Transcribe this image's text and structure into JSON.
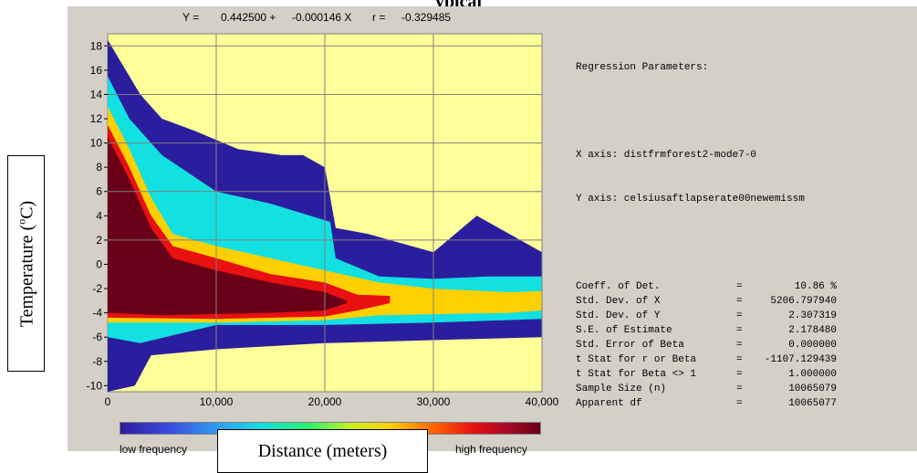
{
  "header": {
    "title_fragment": "ypical"
  },
  "regression_equation": {
    "y_label": "Y =",
    "intercept": "0.442500 +",
    "slope": "-0.000146 X",
    "r_label": "r =",
    "r_value": "-0.329485"
  },
  "regression_panel": {
    "heading": "Regression Parameters:",
    "x_axis": "X axis: distfrmforest2-mode7-0",
    "y_axis": "Y axis: celsiusaftlapserate00newemissm",
    "rows": [
      {
        "label": "Coeff. of Det.",
        "value": "10.86 %"
      },
      {
        "label": "Std. Dev. of X",
        "value": "5206.797940"
      },
      {
        "label": "Std. Dev. of Y",
        "value": "2.307319"
      },
      {
        "label": "S.E. of Estimate",
        "value": "2.178480"
      },
      {
        "label": "Std. Error of Beta",
        "value": "0.000000"
      },
      {
        "label": "t Stat for r or Beta",
        "value": "-1107.129439"
      },
      {
        "label": "t Stat for Beta <> 1",
        "value": "1.000000"
      },
      {
        "label": "Sample Size (n)",
        "value": "10065079"
      },
      {
        "label": "Apparent df",
        "value": "10065077"
      }
    ]
  },
  "colorbar": {
    "low_label": "low frequency",
    "high_label": "high frequency"
  },
  "annotations": {
    "y_axis_label_text": "Temperature (",
    "y_axis_label_sup": "o",
    "y_axis_label_end": "C)",
    "x_axis_label": "Distance (meters)"
  },
  "colors": {
    "plot_background": "#ffff99",
    "panel_background": "#d4d0c8",
    "grid": "#808080",
    "low": "#2b1e9e",
    "high": "#6a0018"
  },
  "chart_data": {
    "type": "heatmap",
    "xlim": [
      0,
      40000
    ],
    "ylim": [
      -10.5,
      19
    ],
    "x_ticks": [
      0,
      10000,
      20000,
      30000,
      40000
    ],
    "x_tick_labels": [
      "0",
      "10,000",
      "20,000",
      "30,000",
      "40,000"
    ],
    "y_ticks": [
      -10,
      -8,
      -6,
      -4,
      -2,
      0,
      2,
      4,
      6,
      8,
      10,
      12,
      14,
      16,
      18
    ],
    "y_tick_labels": [
      "-10",
      "-8",
      "-6",
      "-4",
      "-2",
      "0",
      "2",
      "4",
      "6",
      "8",
      "10",
      "12",
      "14",
      "16",
      "18"
    ],
    "grid": true,
    "regression": {
      "intercept": 0.4425,
      "slope": -0.000146,
      "r": -0.329485
    },
    "density_bands": [
      {
        "level": "very-high",
        "color": "#6a0018",
        "upper": [
          [
            0,
            10.5
          ],
          [
            2000,
            7
          ],
          [
            4000,
            3
          ],
          [
            6000,
            0.5
          ],
          [
            10000,
            -0.5
          ],
          [
            15000,
            -1.5
          ],
          [
            20000,
            -2.3
          ],
          [
            22000,
            -3
          ]
        ],
        "lower": [
          [
            0,
            -4
          ],
          [
            5000,
            -4.2
          ],
          [
            15000,
            -4
          ],
          [
            20000,
            -3.8
          ],
          [
            22000,
            -3.2
          ]
        ]
      },
      {
        "level": "high",
        "color": "#e81010",
        "upper": [
          [
            0,
            11.5
          ],
          [
            2000,
            8
          ],
          [
            4000,
            4
          ],
          [
            6000,
            1.5
          ],
          [
            10000,
            0.5
          ],
          [
            15000,
            -0.8
          ],
          [
            20000,
            -1.5
          ],
          [
            23000,
            -2.5
          ],
          [
            26000,
            -2.6
          ]
        ],
        "lower": [
          [
            0,
            -4.4
          ],
          [
            10000,
            -4.5
          ],
          [
            20000,
            -4.3
          ],
          [
            23000,
            -3.8
          ],
          [
            26000,
            -3.2
          ]
        ]
      },
      {
        "level": "medium",
        "color": "#ffd000",
        "upper": [
          [
            0,
            13
          ],
          [
            2000,
            9.5
          ],
          [
            4000,
            5.5
          ],
          [
            6000,
            2.5
          ],
          [
            10000,
            1.5
          ],
          [
            20000,
            -0.5
          ],
          [
            25000,
            -1.5
          ],
          [
            30000,
            -2
          ],
          [
            37000,
            -2.3
          ],
          [
            40000,
            -2.2
          ]
        ],
        "lower": [
          [
            0,
            -4.8
          ],
          [
            10000,
            -4.8
          ],
          [
            20000,
            -4.6
          ],
          [
            25000,
            -4.2
          ],
          [
            37000,
            -4
          ],
          [
            40000,
            -3.8
          ]
        ]
      },
      {
        "level": "low",
        "color": "#13e0e0",
        "upper": [
          [
            0,
            15.5
          ],
          [
            2000,
            12
          ],
          [
            5000,
            9
          ],
          [
            10000,
            6
          ],
          [
            15000,
            5
          ],
          [
            20500,
            3.5
          ],
          [
            21000,
            0.5
          ],
          [
            25000,
            -1
          ],
          [
            30000,
            -1.2
          ],
          [
            35000,
            -1
          ],
          [
            40000,
            -1
          ]
        ],
        "lower": [
          [
            0,
            -6
          ],
          [
            3000,
            -6.5
          ],
          [
            10000,
            -5
          ],
          [
            20000,
            -5
          ],
          [
            30000,
            -4.8
          ],
          [
            40000,
            -4.5
          ]
        ]
      },
      {
        "level": "very-low",
        "color": "#2b1e9e",
        "upper": [
          [
            0,
            18.5
          ],
          [
            1000,
            17
          ],
          [
            3000,
            14
          ],
          [
            5000,
            12
          ],
          [
            8000,
            11
          ],
          [
            12000,
            9.5
          ],
          [
            16000,
            9
          ],
          [
            18000,
            9
          ],
          [
            20000,
            8
          ],
          [
            21000,
            3
          ],
          [
            24000,
            2.5
          ],
          [
            30000,
            1
          ],
          [
            34000,
            4
          ],
          [
            38000,
            2
          ],
          [
            40000,
            1
          ]
        ],
        "lower": [
          [
            0,
            -10.5
          ],
          [
            2500,
            -10
          ],
          [
            4000,
            -7.5
          ],
          [
            10000,
            -7
          ],
          [
            20000,
            -6.5
          ],
          [
            40000,
            -6
          ]
        ]
      }
    ]
  }
}
